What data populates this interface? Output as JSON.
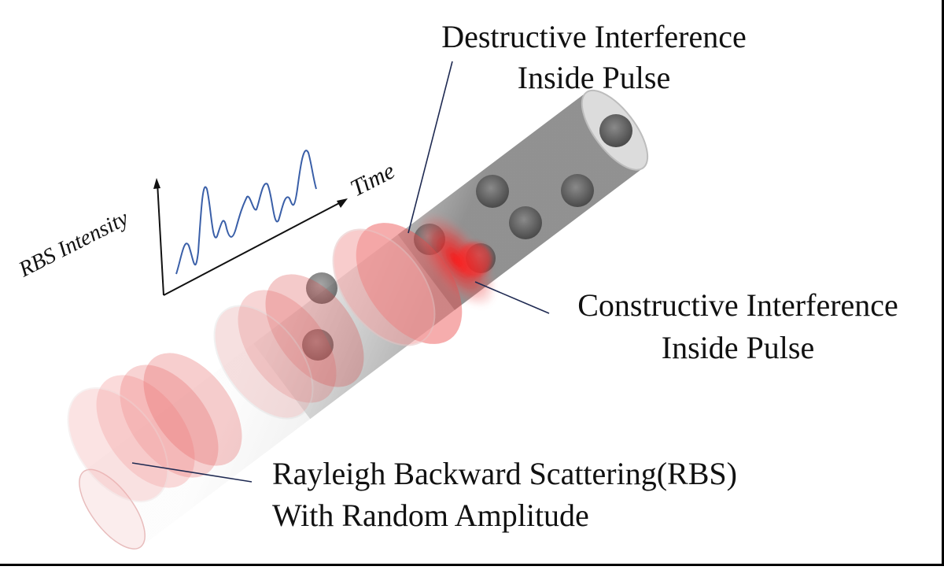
{
  "labels": {
    "destructive_line1": "Destructive Interference",
    "destructive_line2": "Inside Pulse",
    "constructive_line1": "Constructive Interference",
    "constructive_line2": "Inside Pulse",
    "rbs_line1": "Rayleigh Backward Scattering(RBS)",
    "rbs_line2": "With Random Amplitude"
  },
  "inset_plot": {
    "y_axis_label": "RBS Intensity",
    "x_axis_label": "Time",
    "trace_color": "#3a5fa8"
  },
  "colors": {
    "fiber_body": "#b9b9b9",
    "scatterer": "#5a5a5a",
    "pulse_red": "#e8353b",
    "leader_line": "#1f2a52"
  }
}
